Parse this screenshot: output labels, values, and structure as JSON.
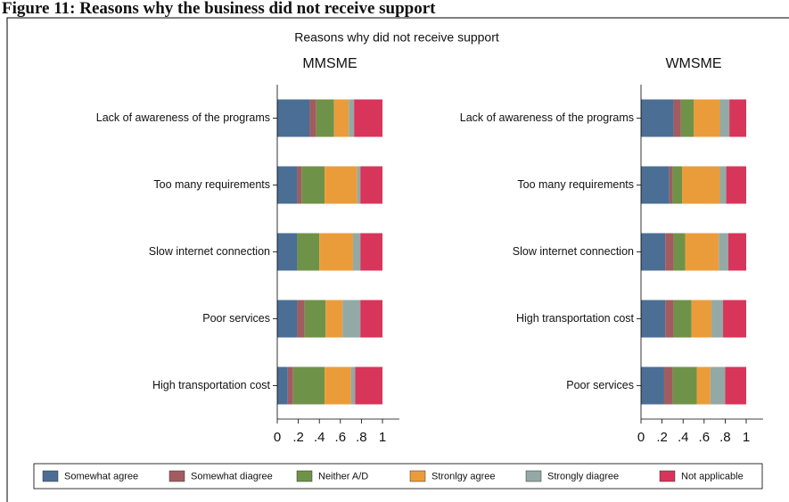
{
  "caption": "Figure 11: Reasons why the business did not receive support",
  "title": "Reasons why did not receive support",
  "chart_data": [
    {
      "type": "bar",
      "orientation": "horizontal",
      "stacked": true,
      "title": "MMSME",
      "categories": [
        "Lack of awareness of the programs",
        "Too many requirements",
        "Slow internet connection",
        "Poor services",
        "High transportation cost"
      ],
      "series": [
        {
          "name": "Somewhat agree",
          "color": "#4b6e94",
          "values": [
            0.31,
            0.19,
            0.19,
            0.19,
            0.1
          ]
        },
        {
          "name": "Somewhat diagree",
          "color": "#a25c5f",
          "values": [
            0.06,
            0.04,
            0.0,
            0.07,
            0.05
          ]
        },
        {
          "name": "Neither A/D",
          "color": "#6f9249",
          "values": [
            0.17,
            0.22,
            0.21,
            0.2,
            0.3
          ]
        },
        {
          "name": "Stronlgy agree",
          "color": "#eb9c3a",
          "values": [
            0.14,
            0.31,
            0.32,
            0.16,
            0.25
          ]
        },
        {
          "name": "Strongly diagree",
          "color": "#93a9a5",
          "values": [
            0.05,
            0.03,
            0.07,
            0.17,
            0.04
          ]
        },
        {
          "name": "Not applicable",
          "color": "#d8355b",
          "values": [
            0.27,
            0.21,
            0.21,
            0.21,
            0.26
          ]
        }
      ],
      "xlim": [
        0,
        1
      ],
      "xticks": [
        0,
        {
          "value": 0.2,
          "label": ".2"
        },
        {
          "value": 0.4,
          "label": ".4"
        },
        {
          "value": 0.6,
          "label": ".6"
        },
        {
          "value": 0.8,
          "label": ".8"
        },
        1
      ]
    },
    {
      "type": "bar",
      "orientation": "horizontal",
      "stacked": true,
      "title": "WMSME",
      "categories": [
        "Lack of awareness of the programs",
        "Too many requirements",
        "Slow internet connection",
        "High transportation cost",
        "Poor services"
      ],
      "series": [
        {
          "name": "Somewhat agree",
          "color": "#4b6e94",
          "values": [
            0.31,
            0.27,
            0.23,
            0.23,
            0.22
          ]
        },
        {
          "name": "Somewhat diagree",
          "color": "#a25c5f",
          "values": [
            0.07,
            0.03,
            0.08,
            0.08,
            0.08
          ]
        },
        {
          "name": "Neither A/D",
          "color": "#6f9249",
          "values": [
            0.12,
            0.09,
            0.11,
            0.17,
            0.23
          ]
        },
        {
          "name": "Stronlgy agree",
          "color": "#eb9c3a",
          "values": [
            0.25,
            0.36,
            0.32,
            0.19,
            0.13
          ]
        },
        {
          "name": "Strongly diagree",
          "color": "#93a9a5",
          "values": [
            0.09,
            0.06,
            0.09,
            0.11,
            0.14
          ]
        },
        {
          "name": "Not applicable",
          "color": "#d8355b",
          "values": [
            0.16,
            0.19,
            0.17,
            0.22,
            0.2
          ]
        }
      ],
      "xlim": [
        0,
        1
      ],
      "xticks": [
        0,
        {
          "value": 0.2,
          "label": ".2"
        },
        {
          "value": 0.4,
          "label": ".4"
        },
        {
          "value": 0.6,
          "label": ".6"
        },
        {
          "value": 0.8,
          "label": ".8"
        },
        1
      ]
    }
  ]
}
